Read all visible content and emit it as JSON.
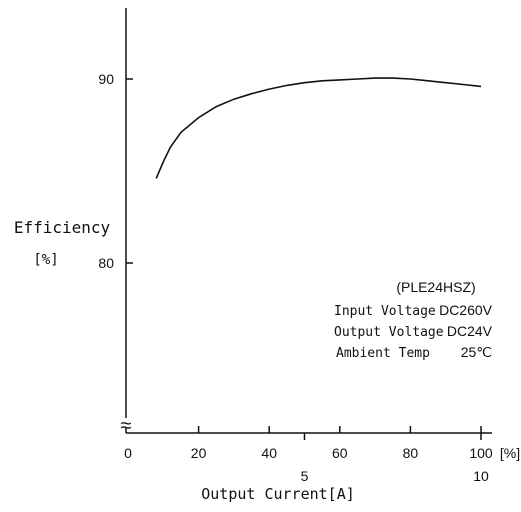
{
  "chart_data": {
    "type": "line",
    "title": "",
    "ylabel_line1": "Efficiency",
    "ylabel_line2": "[%]",
    "xlabel": "Output Current[A]",
    "x_unit": "[%]",
    "xlim": [
      0,
      100
    ],
    "ylim_visible": [
      70,
      93
    ],
    "axis_break": "≈",
    "grid": false,
    "legend": "none",
    "x_ticks": [
      {
        "v": 0,
        "label": "0"
      },
      {
        "v": 20,
        "label": "20"
      },
      {
        "v": 40,
        "label": "40"
      },
      {
        "v": 60,
        "label": "60"
      },
      {
        "v": 80,
        "label": "80"
      },
      {
        "v": 100,
        "label": "100"
      }
    ],
    "x_ticks_amps": [
      {
        "v": 50,
        "label": "5"
      },
      {
        "v": 100,
        "label": "10"
      }
    ],
    "y_ticks": [
      {
        "v": 80,
        "label": "80"
      },
      {
        "v": 90,
        "label": "90"
      }
    ],
    "series": [
      {
        "color": "#111111",
        "points": [
          [
            8,
            84.6
          ],
          [
            10,
            85.5
          ],
          [
            12,
            86.3
          ],
          [
            15,
            87.1
          ],
          [
            20,
            87.9
          ],
          [
            25,
            88.5
          ],
          [
            30,
            88.9
          ],
          [
            35,
            89.2
          ],
          [
            40,
            89.45
          ],
          [
            45,
            89.65
          ],
          [
            50,
            89.8
          ],
          [
            55,
            89.9
          ],
          [
            60,
            89.95
          ],
          [
            65,
            90.0
          ],
          [
            70,
            90.05
          ],
          [
            75,
            90.05
          ],
          [
            80,
            90.0
          ],
          [
            85,
            89.9
          ],
          [
            90,
            89.8
          ],
          [
            95,
            89.7
          ],
          [
            100,
            89.6
          ]
        ]
      }
    ],
    "annotation": {
      "model": "(PLE24HSZ)",
      "rows": [
        {
          "label": "Input Voltage",
          "value": "DC260V"
        },
        {
          "label": "Output Voltage",
          "value": "DC24V"
        },
        {
          "label": "Ambient Temp",
          "value": "25℃"
        }
      ]
    }
  }
}
